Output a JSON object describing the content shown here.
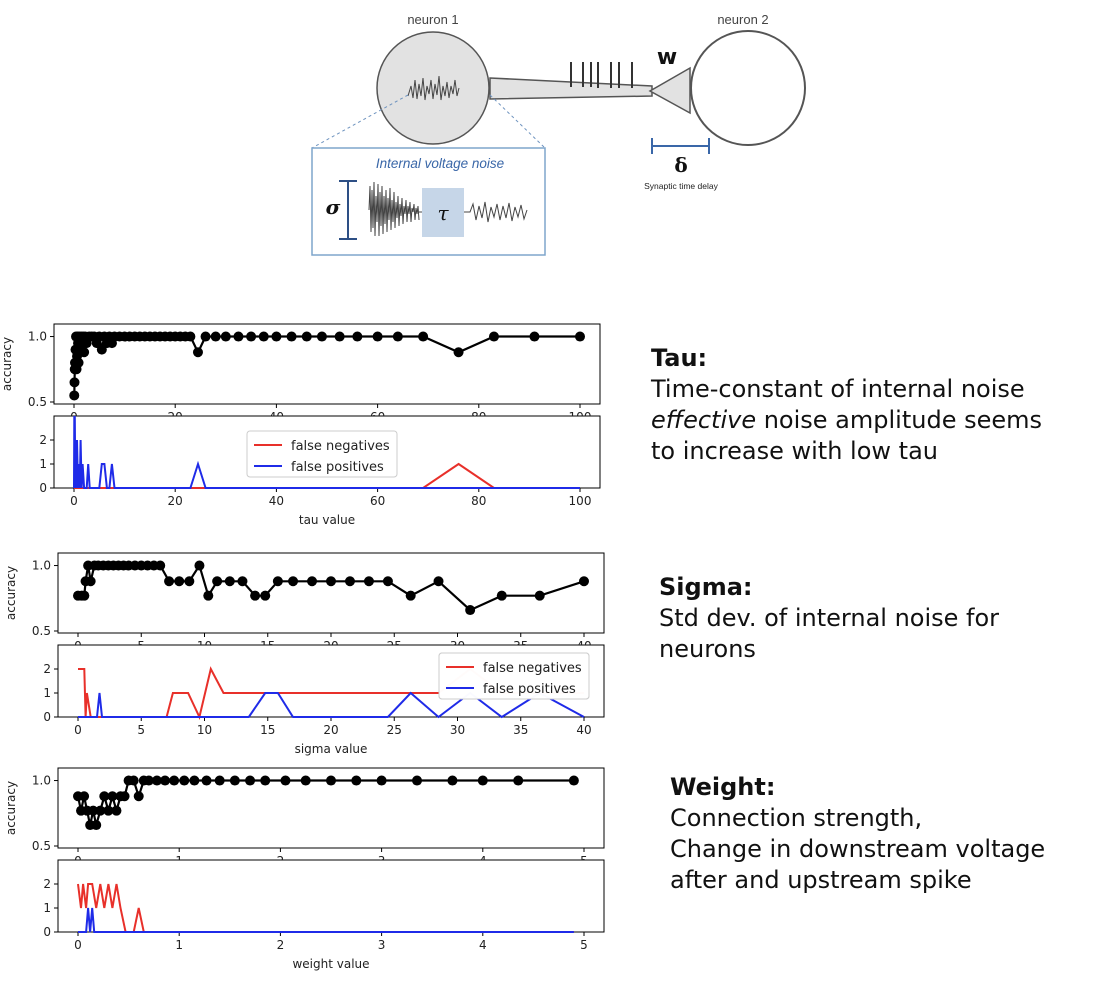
{
  "diagram": {
    "neuron1_label": "neuron 1",
    "neuron2_label": "neuron 2",
    "weight_symbol": "w",
    "delay_symbol": "δ",
    "delay_label": "Synaptic time delay",
    "noise_title": "Internal voltage noise",
    "sigma_symbol": "σ",
    "tau_symbol": "τ",
    "colors": {
      "neuron_fill": "#e2e2e2",
      "noise_box_border": "#7fa5cc",
      "tau_box_fill": "#c6d6e8",
      "delay_bar": "#3a67a8"
    }
  },
  "descriptions": {
    "tau": {
      "title": "Tau:",
      "line1": "Time-constant of internal noise",
      "line2_em": "effective",
      "line2_rest": " noise amplitude seems",
      "line3": "to increase with low tau"
    },
    "sigma": {
      "title": "Sigma:",
      "line1": "Std dev. of internal noise for",
      "line2": "neurons"
    },
    "weight": {
      "title": "Weight:",
      "line1": "Connection strength,",
      "line2": "Change in downstream voltage",
      "line3": "after and upstream spike"
    }
  },
  "legend": {
    "false_negatives": "false negatives",
    "false_positives": "false positives"
  },
  "colors": {
    "accuracy": "#000000",
    "false_negatives": "#e8302a",
    "false_positives": "#1f2be8"
  },
  "chart_data": [
    {
      "type": "line",
      "id": "tau",
      "xlabel": "tau value",
      "ylabel": "accuracy",
      "xlim": [
        0,
        100
      ],
      "acc_ylim": [
        0.5,
        1.05
      ],
      "acc_yticks": [
        0.5,
        1.0
      ],
      "err_ylim": [
        0,
        3
      ],
      "err_yticks": [
        0,
        1,
        2
      ],
      "xticks": [
        0,
        20,
        40,
        60,
        80,
        100
      ],
      "accuracy": {
        "x": [
          0.05,
          0.1,
          0.15,
          0.2,
          0.3,
          0.4,
          0.5,
          0.6,
          0.7,
          0.8,
          0.9,
          1.0,
          1.2,
          1.4,
          1.6,
          1.8,
          2.0,
          2.2,
          2.5,
          3.0,
          3.5,
          4.0,
          4.5,
          5.0,
          5.5,
          6.0,
          6.5,
          7.0,
          7.5,
          8.0,
          9,
          10,
          11,
          12,
          13,
          14,
          15,
          16,
          17,
          18,
          19,
          20,
          21,
          22,
          23,
          24.5,
          26,
          28,
          30,
          32.5,
          35,
          37.5,
          40,
          43,
          46,
          49,
          52.5,
          56,
          60,
          64,
          69,
          76,
          83,
          91,
          100
        ],
        "y": [
          0.55,
          0.65,
          0.75,
          0.8,
          0.9,
          1.0,
          0.75,
          0.85,
          1.0,
          0.95,
          0.8,
          1.0,
          0.9,
          1.0,
          0.95,
          1.0,
          0.88,
          1.0,
          0.95,
          1.0,
          1.0,
          1.0,
          0.95,
          1.0,
          0.9,
          1.0,
          0.95,
          1.0,
          0.95,
          1.0,
          1,
          1,
          1,
          1,
          1,
          1,
          1,
          1,
          1,
          1,
          1,
          1,
          1,
          1,
          1,
          0.88,
          1,
          1,
          1,
          1,
          1,
          1,
          1,
          1,
          1,
          1,
          1,
          1,
          1,
          1,
          1,
          0.88,
          1,
          1,
          1
        ]
      },
      "false_negatives": {
        "x": [
          0,
          69,
          76,
          83,
          100
        ],
        "y": [
          0,
          0,
          1,
          0,
          0
        ]
      },
      "false_positives": {
        "x": [
          0,
          0.05,
          0.1,
          0.15,
          0.25,
          0.35,
          0.5,
          0.6,
          0.8,
          1.0,
          1.15,
          1.3,
          1.5,
          1.7,
          2.0,
          2.5,
          2.8,
          3.1,
          3.5,
          4,
          5,
          5.5,
          6,
          6.5,
          7,
          7.5,
          8,
          9,
          23,
          24.5,
          26,
          28,
          100
        ],
        "y": [
          0,
          3,
          0,
          3,
          0,
          2,
          0,
          2,
          0,
          1,
          0,
          2,
          0,
          1,
          0,
          0,
          1,
          0,
          0,
          0,
          0,
          1,
          1,
          0,
          0,
          1,
          0,
          0,
          0,
          1,
          0,
          0,
          0
        ]
      }
    },
    {
      "type": "line",
      "id": "sigma",
      "xlabel": "sigma value",
      "ylabel": "accuracy",
      "xlim": [
        0,
        40
      ],
      "acc_ylim": [
        0.5,
        1.05
      ],
      "acc_yticks": [
        0.5,
        1.0
      ],
      "err_ylim": [
        0,
        3
      ],
      "err_yticks": [
        0,
        1,
        2
      ],
      "xticks": [
        0,
        5,
        10,
        15,
        20,
        25,
        30,
        35,
        40
      ],
      "accuracy": {
        "x": [
          0,
          0.3,
          0.5,
          0.6,
          0.8,
          1.0,
          1.3,
          1.6,
          2.0,
          2.4,
          2.8,
          3.2,
          3.6,
          4.0,
          4.5,
          5.0,
          5.5,
          6.0,
          6.5,
          7.2,
          8.0,
          8.8,
          9.6,
          10.3,
          11.0,
          12.0,
          13.0,
          14.0,
          14.8,
          15.8,
          17.0,
          18.5,
          20.0,
          21.5,
          23.0,
          24.5,
          26.3,
          28.5,
          31.0,
          33.5,
          36.5,
          40.0
        ],
        "y": [
          0.77,
          0.77,
          0.77,
          0.88,
          1.0,
          0.88,
          1.0,
          1.0,
          1.0,
          1.0,
          1.0,
          1.0,
          1.0,
          1.0,
          1.0,
          1.0,
          1.0,
          1.0,
          1.0,
          0.88,
          0.88,
          0.88,
          1.0,
          0.77,
          0.88,
          0.88,
          0.88,
          0.77,
          0.77,
          0.88,
          0.88,
          0.88,
          0.88,
          0.88,
          0.88,
          0.88,
          0.77,
          0.88,
          0.66,
          0.77,
          0.77,
          0.88
        ]
      },
      "false_negatives": {
        "x": [
          0,
          0.5,
          0.6,
          0.7,
          1.0,
          7.0,
          7.5,
          8.7,
          9.6,
          10.5,
          11.5,
          20,
          28.5,
          31.0,
          33.5,
          36.5,
          40
        ],
        "y": [
          2,
          2,
          0,
          1,
          0,
          0,
          1,
          1,
          0,
          2,
          1,
          1,
          1,
          2,
          1,
          1,
          1
        ]
      },
      "false_positives": {
        "x": [
          0,
          1.5,
          1.7,
          1.9,
          13.5,
          14.8,
          15.8,
          17.0,
          24.5,
          26.3,
          28.5,
          31.0,
          33.5,
          36.5,
          40
        ],
        "y": [
          0,
          0,
          1,
          0,
          0,
          1,
          1,
          0,
          0,
          1,
          0,
          1,
          0,
          1,
          0
        ]
      }
    },
    {
      "type": "line",
      "id": "weight",
      "xlabel": "weight value",
      "ylabel": "accuracy",
      "xlim": [
        0,
        5
      ],
      "acc_ylim": [
        0.5,
        1.05
      ],
      "acc_yticks": [
        0.5,
        1.0
      ],
      "err_ylim": [
        0,
        3
      ],
      "err_yticks": [
        0,
        1,
        2
      ],
      "xticks": [
        0,
        1,
        2,
        3,
        4,
        5
      ],
      "accuracy": {
        "x": [
          0,
          0.03,
          0.06,
          0.09,
          0.12,
          0.15,
          0.18,
          0.22,
          0.26,
          0.3,
          0.34,
          0.38,
          0.42,
          0.46,
          0.5,
          0.55,
          0.6,
          0.65,
          0.7,
          0.78,
          0.86,
          0.95,
          1.05,
          1.15,
          1.27,
          1.4,
          1.55,
          1.7,
          1.85,
          2.05,
          2.25,
          2.5,
          2.75,
          3.0,
          3.35,
          3.7,
          4.0,
          4.35,
          4.9
        ],
        "y": [
          0.88,
          0.77,
          0.88,
          0.77,
          0.66,
          0.77,
          0.66,
          0.77,
          0.88,
          0.77,
          0.88,
          0.77,
          0.88,
          0.88,
          1.0,
          1.0,
          0.88,
          1.0,
          1.0,
          1.0,
          1.0,
          1.0,
          1.0,
          1.0,
          1.0,
          1.0,
          1.0,
          1.0,
          1.0,
          1.0,
          1.0,
          1.0,
          1.0,
          1.0,
          1.0,
          1.0,
          1.0,
          1.0,
          1.0
        ]
      },
      "false_negatives": {
        "x": [
          0,
          0.03,
          0.05,
          0.08,
          0.1,
          0.14,
          0.18,
          0.22,
          0.26,
          0.3,
          0.34,
          0.38,
          0.42,
          0.47,
          0.5,
          0.55,
          0.6,
          0.65,
          0.7,
          1.0,
          4.9
        ],
        "y": [
          2,
          1,
          2,
          1,
          2,
          2,
          1,
          2,
          1,
          2,
          1,
          2,
          1,
          0,
          0,
          0,
          1,
          0,
          0,
          0,
          0
        ]
      },
      "false_positives": {
        "x": [
          0,
          0.08,
          0.1,
          0.12,
          0.14,
          0.16,
          0.18,
          4.9
        ],
        "y": [
          0,
          0,
          1,
          0,
          1,
          0,
          0,
          0
        ]
      }
    }
  ]
}
